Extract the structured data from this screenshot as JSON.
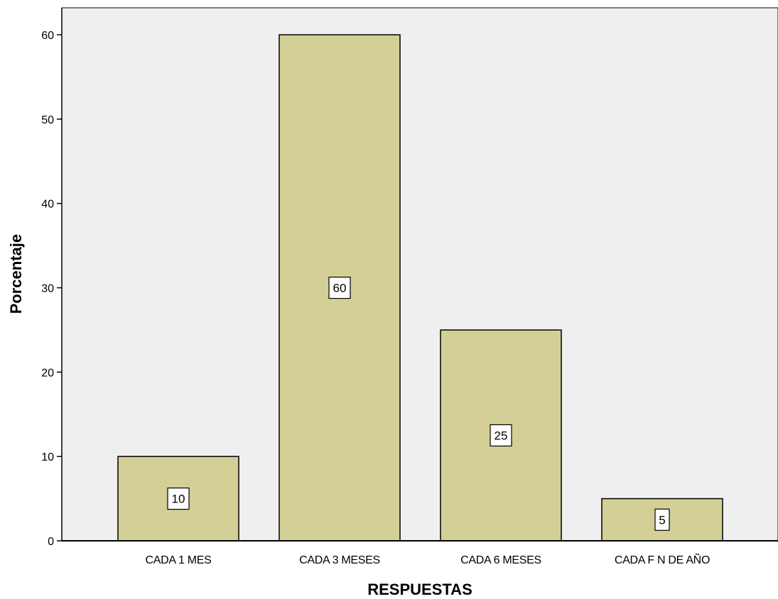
{
  "chart_data": {
    "type": "bar",
    "categories": [
      "CADA 1 MES",
      "CADA 3 MESES",
      "CADA 6 MESES",
      "CADA F N DE AÑO"
    ],
    "values": [
      10,
      60,
      25,
      5
    ],
    "data_labels": [
      "10",
      "60",
      "25",
      "5"
    ],
    "xlabel": "RESPUESTAS",
    "ylabel": "Porcentaje",
    "ylim": [
      0,
      60
    ],
    "yticks": [
      0,
      10,
      20,
      30,
      40,
      50,
      60
    ],
    "grid": false,
    "colors": {
      "bar_fill": "#d4cf96",
      "bar_stroke": "#000000",
      "plot_bg": "#efefef",
      "label_box_fill": "#ffffff"
    }
  }
}
